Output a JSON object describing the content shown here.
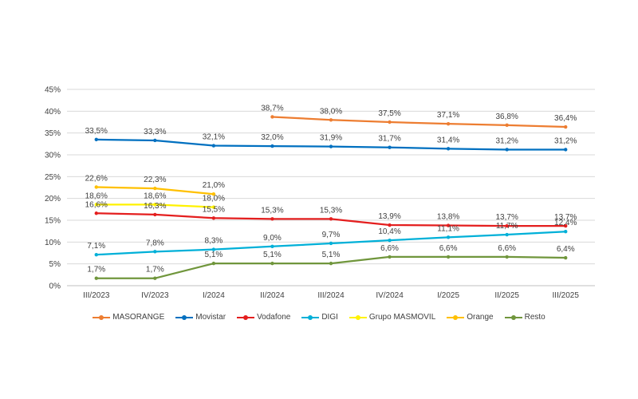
{
  "chart_data": {
    "type": "line",
    "title": "",
    "xlabel": "",
    "ylabel": "",
    "ylim": [
      0,
      45
    ],
    "y_ticks": [
      "0%",
      "5%",
      "10%",
      "15%",
      "20%",
      "25%",
      "30%",
      "35%",
      "40%",
      "45%"
    ],
    "grid": true,
    "legend_position": "bottom",
    "categories": [
      "III/2023",
      "IV/2023",
      "I/2024",
      "II/2024",
      "III/2024",
      "IV/2024",
      "I/2025",
      "II/2025",
      "III/2025"
    ],
    "series": [
      {
        "name": "MASORANGE",
        "color": "#ED7D31",
        "values": [
          null,
          null,
          null,
          38.7,
          38.0,
          37.5,
          37.1,
          36.8,
          36.4
        ],
        "labels": [
          null,
          null,
          null,
          "38,7%",
          "38,0%",
          "37,5%",
          "37,1%",
          "36,8%",
          "36,4%"
        ]
      },
      {
        "name": "Movistar",
        "color": "#0070C0",
        "values": [
          33.5,
          33.3,
          32.1,
          32.0,
          31.9,
          31.7,
          31.4,
          31.2,
          31.2
        ],
        "labels": [
          "33,5%",
          "33,3%",
          "32,1%",
          "32,0%",
          "31,9%",
          "31,7%",
          "31,4%",
          "31,2%",
          "31,2%"
        ]
      },
      {
        "name": "Vodafone",
        "color": "#E41E1E",
        "values": [
          16.6,
          16.3,
          15.5,
          15.3,
          15.3,
          13.9,
          13.8,
          13.7,
          13.7
        ],
        "labels": [
          "16,6%",
          "16,3%",
          "15,5%",
          "15,3%",
          "15,3%",
          "13,9%",
          "13,8%",
          "13,7%",
          "13,7%"
        ]
      },
      {
        "name": "DIGI",
        "color": "#00B0D8",
        "values": [
          7.1,
          7.8,
          8.3,
          9.0,
          9.7,
          10.4,
          11.1,
          11.7,
          12.4
        ],
        "labels": [
          "7,1%",
          "7,8%",
          "8,3%",
          "9,0%",
          "9,7%",
          "10,4%",
          "11,1%",
          "11,7%",
          "12,4%"
        ]
      },
      {
        "name": "Grupo MASMOVIL",
        "color": "#FFF200",
        "values": [
          18.6,
          18.6,
          18.0,
          null,
          null,
          null,
          null,
          null,
          null
        ],
        "labels": [
          "18,6%",
          "18,6%",
          "18,0%",
          null,
          null,
          null,
          null,
          null,
          null
        ]
      },
      {
        "name": "Orange",
        "color": "#FFC000",
        "values": [
          22.6,
          22.3,
          21.0,
          null,
          null,
          null,
          null,
          null,
          null
        ],
        "labels": [
          "22,6%",
          "22,3%",
          "21,0%",
          null,
          null,
          null,
          null,
          null,
          null
        ]
      },
      {
        "name": "Resto",
        "color": "#70963C",
        "values": [
          1.7,
          1.7,
          5.1,
          5.1,
          5.1,
          6.6,
          6.6,
          6.6,
          6.4
        ],
        "labels": [
          "1,7%",
          "1,7%",
          "5,1%",
          "5,1%",
          "5,1%",
          "6,6%",
          "6,6%",
          "6,6%",
          "6,4%"
        ]
      }
    ]
  }
}
